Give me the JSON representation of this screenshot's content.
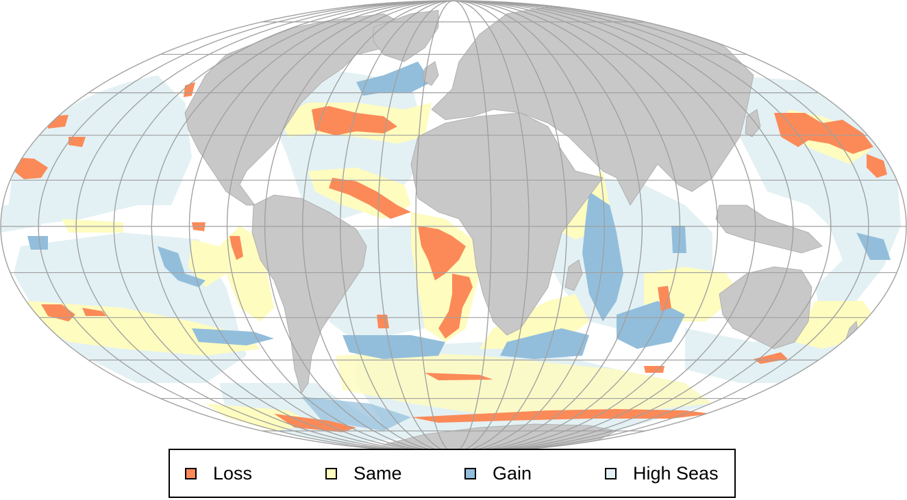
{
  "map": {
    "projection": "Mollweide",
    "graticule": true,
    "land_color": "#c8c8c8",
    "ocean_color": "#ffffff",
    "graticule_color": "#a0a0a0"
  },
  "legend": {
    "items": [
      {
        "label": "Loss",
        "color": "#fb8a58"
      },
      {
        "label": "Same",
        "color": "#fefcbf"
      },
      {
        "label": "Gain",
        "color": "#92bedb"
      },
      {
        "label": "High Seas",
        "color": "#e3f1f4"
      }
    ]
  }
}
